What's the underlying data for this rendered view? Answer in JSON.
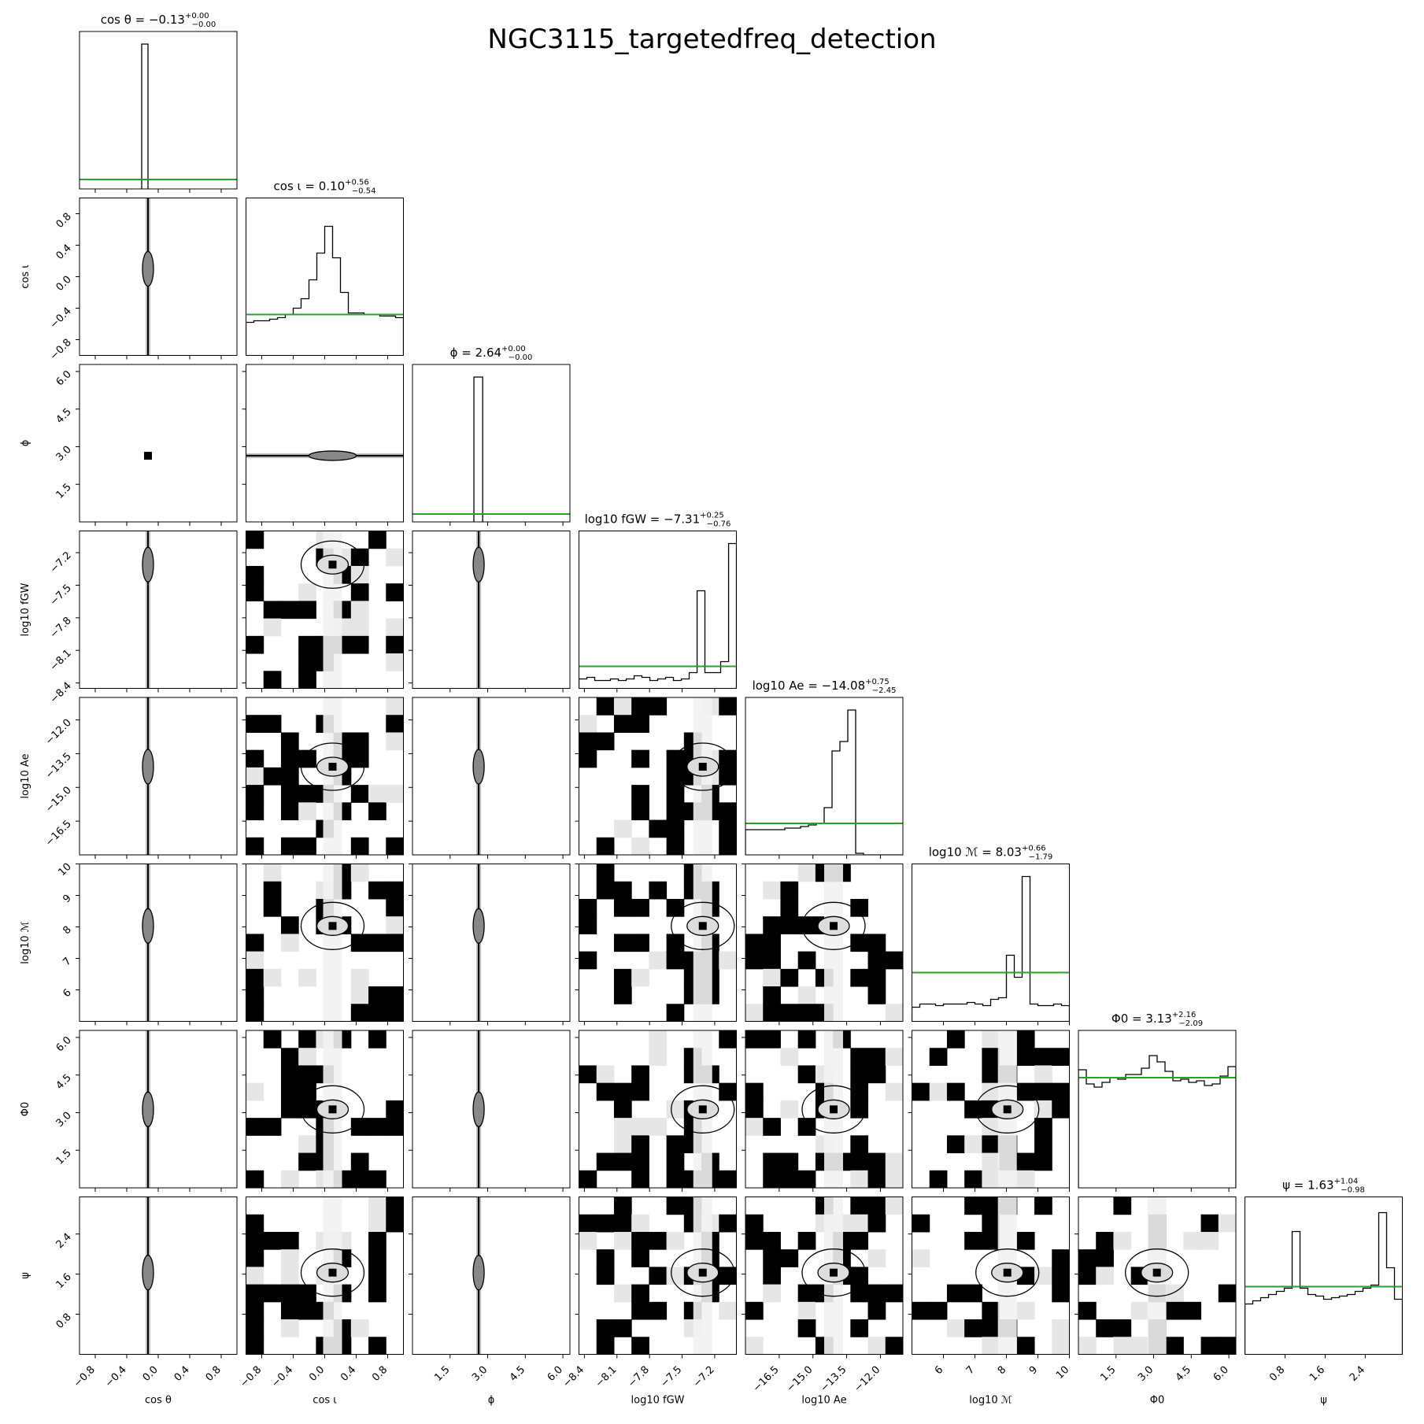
{
  "title": "NGC3115_targetedfreq_detection",
  "chart_data": {
    "type": "corner",
    "title": "NGC3115_targetedfreq_detection",
    "parameters": [
      {
        "key": "cos_theta",
        "label": "cos θ",
        "title": "cos θ = −0.13",
        "median": -0.13,
        "err_plus": 0.0,
        "err_minus": 0.0,
        "range": [
          -1.0,
          1.0
        ],
        "ticks": [
          -0.8,
          -0.4,
          0.0,
          0.4,
          0.8
        ],
        "tick_labels": [
          "−0.8",
          "−0.4",
          "0.0",
          "0.4",
          "0.8"
        ],
        "prior_level": 0.06,
        "hist": [
          {
            "x0": -0.21,
            "x1": -0.13,
            "h": 0.92
          }
        ]
      },
      {
        "key": "cos_iota",
        "label": "cos ι",
        "title": "cos ι = 0.10",
        "median": 0.1,
        "err_plus": 0.56,
        "err_minus": 0.54,
        "range": [
          -1.0,
          1.0
        ],
        "ticks": [
          -0.8,
          -0.4,
          0.0,
          0.4,
          0.8
        ],
        "tick_labels": [
          "−0.8",
          "−0.4",
          "0.0",
          "0.4",
          "0.8"
        ],
        "prior_level": 0.26,
        "hist_bins": [
          -1.0,
          -0.9,
          -0.8,
          -0.7,
          -0.6,
          -0.5,
          -0.4,
          -0.3,
          -0.2,
          -0.1,
          0.0,
          0.1,
          0.2,
          0.3,
          0.4,
          0.5,
          0.6,
          0.7,
          0.8,
          0.9,
          1.0
        ],
        "hist_heights": [
          0.21,
          0.22,
          0.22,
          0.23,
          0.24,
          0.26,
          0.3,
          0.36,
          0.48,
          0.65,
          0.82,
          0.62,
          0.4,
          0.27,
          0.27,
          0.26,
          0.26,
          0.25,
          0.25,
          0.24
        ]
      },
      {
        "key": "phi",
        "label": "ϕ",
        "title": "ϕ = 2.64",
        "median": 2.64,
        "err_plus": 0.0,
        "err_minus": 0.0,
        "range": [
          0.0,
          6.28
        ],
        "ticks": [
          1.5,
          3.0,
          4.5,
          6.0
        ],
        "tick_labels": [
          "1.5",
          "3.0",
          "4.5",
          "6.0"
        ],
        "prior_level": 0.05,
        "hist": [
          {
            "x0": 2.45,
            "x1": 2.8,
            "h": 0.92
          }
        ]
      },
      {
        "key": "log10_fgw",
        "label": "log10 fGW",
        "title": "log10 fGW = −7.31",
        "median": -7.31,
        "err_plus": 0.25,
        "err_minus": 0.76,
        "range": [
          -8.45,
          -7.0
        ],
        "ticks": [
          -8.4,
          -8.1,
          -7.8,
          -7.5,
          -7.2
        ],
        "tick_labels": [
          "−8.4",
          "−8.1",
          "−7.8",
          "−7.5",
          "−7.2"
        ],
        "prior_level": 0.14,
        "hist_bins": [
          -8.45,
          -8.377,
          -8.305,
          -8.232,
          -8.16,
          -8.087,
          -8.015,
          -7.942,
          -7.87,
          -7.797,
          -7.725,
          -7.652,
          -7.58,
          -7.507,
          -7.435,
          -7.362,
          -7.29,
          -7.217,
          -7.145,
          -7.072,
          -7.0
        ],
        "hist_heights": [
          0.06,
          0.07,
          0.05,
          0.05,
          0.06,
          0.05,
          0.06,
          0.08,
          0.07,
          0.05,
          0.06,
          0.07,
          0.05,
          0.06,
          0.1,
          0.62,
          0.1,
          0.1,
          0.17,
          0.92
        ]
      },
      {
        "key": "log10_Ae",
        "label": "log10 Ae",
        "title": "log10 Ae = −14.08",
        "median": -14.08,
        "err_plus": 0.75,
        "err_minus": 2.45,
        "range": [
          -18.0,
          -11.0
        ],
        "ticks": [
          -16.5,
          -15.0,
          -13.5,
          -12.0
        ],
        "tick_labels": [
          "−16.5",
          "−15.0",
          "−13.5",
          "−12.0"
        ],
        "prior_level": 0.2,
        "hist_bins": [
          -18.0,
          -17.65,
          -17.3,
          -16.95,
          -16.6,
          -16.25,
          -15.9,
          -15.55,
          -15.2,
          -14.85,
          -14.5,
          -14.15,
          -13.8,
          -13.45,
          -13.1,
          -12.75,
          -12.4,
          -12.05,
          -11.7,
          -11.35,
          -11.0
        ],
        "hist_heights": [
          0.16,
          0.16,
          0.16,
          0.16,
          0.16,
          0.17,
          0.17,
          0.18,
          0.19,
          0.2,
          0.3,
          0.66,
          0.72,
          0.92,
          0.01,
          0.0,
          0.0,
          0.0,
          0.0,
          0.0
        ]
      },
      {
        "key": "log10_M",
        "label": "log10 ℳ",
        "title": "log10 ℳ = 8.03",
        "median": 8.03,
        "err_plus": 0.66,
        "err_minus": 1.79,
        "range": [
          5.0,
          10.0
        ],
        "ticks": [
          6,
          7,
          8,
          9,
          10
        ],
        "tick_labels": [
          "6",
          "7",
          "8",
          "9",
          "10"
        ],
        "prior_level": 0.31,
        "hist_bins": [
          5.0,
          5.25,
          5.5,
          5.75,
          6.0,
          6.25,
          6.5,
          6.75,
          7.0,
          7.25,
          7.5,
          7.75,
          8.0,
          8.25,
          8.5,
          8.75,
          9.0,
          9.25,
          9.5,
          9.75,
          10.0
        ],
        "hist_heights": [
          0.09,
          0.11,
          0.11,
          0.1,
          0.11,
          0.11,
          0.11,
          0.12,
          0.11,
          0.1,
          0.14,
          0.15,
          0.42,
          0.28,
          0.92,
          0.11,
          0.1,
          0.1,
          0.11,
          0.1
        ]
      },
      {
        "key": "Phi0",
        "label": "Φ0",
        "title": "Φ0 = 3.13",
        "median": 3.13,
        "err_plus": 2.16,
        "err_minus": 2.09,
        "range": [
          0.0,
          6.28
        ],
        "ticks": [
          1.5,
          3.0,
          4.5,
          6.0
        ],
        "tick_labels": [
          "1.5",
          "3.0",
          "4.5",
          "6.0"
        ],
        "prior_level": 0.7,
        "hist_bins": [
          0.0,
          0.314,
          0.628,
          0.942,
          1.256,
          1.57,
          1.884,
          2.198,
          2.512,
          2.826,
          3.14,
          3.454,
          3.768,
          4.082,
          4.396,
          4.71,
          5.024,
          5.338,
          5.652,
          5.966,
          6.28
        ],
        "hist_heights": [
          0.75,
          0.66,
          0.64,
          0.67,
          0.7,
          0.69,
          0.72,
          0.72,
          0.76,
          0.84,
          0.8,
          0.74,
          0.68,
          0.69,
          0.67,
          0.68,
          0.65,
          0.66,
          0.71,
          0.77
        ]
      },
      {
        "key": "psi",
        "label": "ψ",
        "title": "ψ = 1.63",
        "median": 1.63,
        "err_plus": 1.04,
        "err_minus": 0.98,
        "range": [
          0.0,
          3.14
        ],
        "ticks": [
          0.8,
          1.6,
          2.4
        ],
        "tick_labels": [
          "0.8",
          "1.6",
          "2.4"
        ],
        "prior_level": 0.43,
        "hist_bins": [
          0.0,
          0.157,
          0.314,
          0.471,
          0.628,
          0.785,
          0.942,
          1.099,
          1.256,
          1.413,
          1.57,
          1.727,
          1.884,
          2.041,
          2.198,
          2.355,
          2.512,
          2.669,
          2.826,
          2.983,
          3.14
        ],
        "hist_heights": [
          0.32,
          0.34,
          0.36,
          0.38,
          0.4,
          0.42,
          0.78,
          0.42,
          0.38,
          0.37,
          0.35,
          0.36,
          0.37,
          0.38,
          0.4,
          0.42,
          0.44,
          0.9,
          0.55,
          0.35
        ]
      }
    ]
  }
}
